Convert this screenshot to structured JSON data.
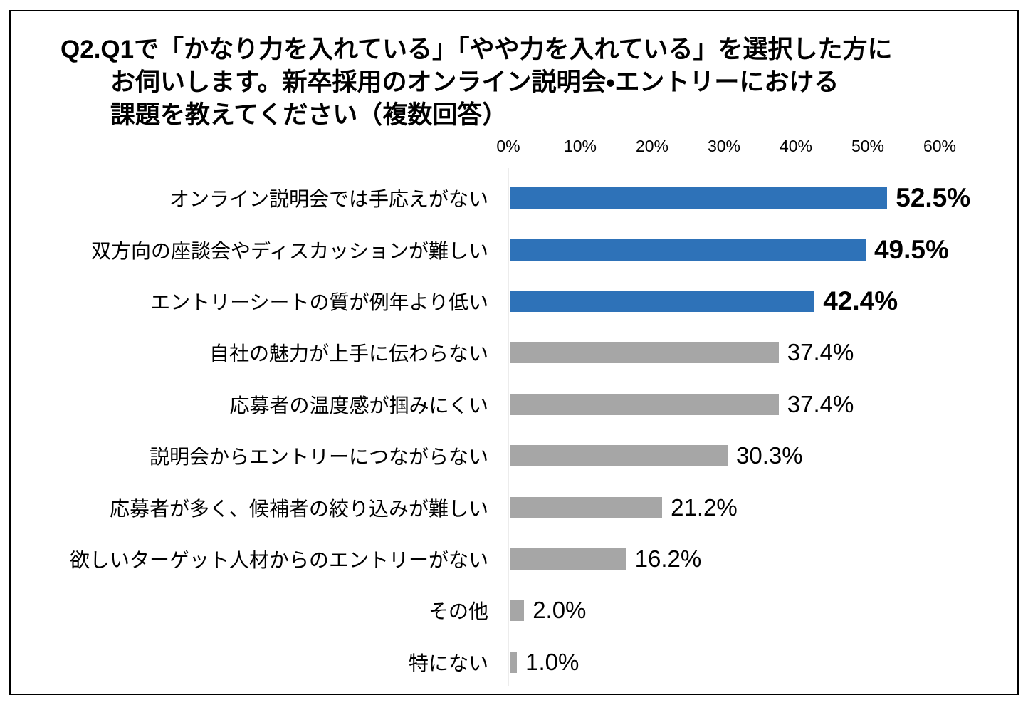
{
  "chart_data": {
    "type": "bar",
    "orientation": "horizontal",
    "title": "Q2.Q1で「かなり力を入れている」「やや力を入れている」を選択した方にお伺いします。新卒採用のオンライン説明会・エントリーにおける課題を教えてください（複数回答）",
    "title_lines": [
      "Q2.Q1で「かなり力を入れている」「やや力を入れている」を選択した方に",
      "お伺いします。新卒採用のオンライン説明会・エントリーにおける",
      "課題を教えてください（複数回答）"
    ],
    "categories": [
      "オンライン説明会では手応えがない",
      "双方向の座談会やディスカッションが難しい",
      "エントリーシートの質が例年より低い",
      "自社の魅力が上手に伝わらない",
      "応募者の温度感が掴みにくい",
      "説明会からエントリーにつながらない",
      "応募者が多く、候補者の絞り込みが難しい",
      "欲しいターゲット人材からのエントリーがない",
      "その他",
      "特にない"
    ],
    "values": [
      52.5,
      49.5,
      42.4,
      37.4,
      37.4,
      30.3,
      21.2,
      16.2,
      2.0,
      1.0
    ],
    "value_labels": [
      "52.5%",
      "49.5%",
      "42.4%",
      "37.4%",
      "37.4%",
      "30.3%",
      "21.2%",
      "16.2%",
      "2.0%",
      "1.0%"
    ],
    "highlighted": [
      true,
      true,
      true,
      false,
      false,
      false,
      false,
      false,
      false,
      false
    ],
    "x_ticks": [
      "0%",
      "10%",
      "20%",
      "30%",
      "40%",
      "50%",
      "60%"
    ],
    "xlim": [
      0,
      60
    ],
    "xlabel": "",
    "ylabel": "",
    "grid": false,
    "legend": false,
    "colors": {
      "highlight_bar": "#2E72B8",
      "normal_bar": "#A6A6A6",
      "axis_line": "#ECECEC",
      "text": "#000000",
      "background": "#FFFFFF",
      "border": "#000000"
    }
  }
}
